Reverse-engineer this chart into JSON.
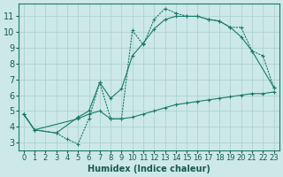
{
  "bg_color": "#cce8e8",
  "grid_color": "#aacece",
  "line_color": "#1a7a6a",
  "xlabel": "Humidex (Indice chaleur)",
  "xlim": [
    -0.5,
    23.5
  ],
  "ylim": [
    2.5,
    11.8
  ],
  "yticks": [
    3,
    4,
    5,
    6,
    7,
    8,
    9,
    10,
    11
  ],
  "xticks": [
    0,
    1,
    2,
    3,
    4,
    5,
    6,
    7,
    8,
    9,
    10,
    11,
    12,
    13,
    14,
    15,
    16,
    17,
    18,
    19,
    20,
    21,
    22,
    23
  ],
  "line1_x": [
    0,
    1,
    3,
    4,
    5,
    6,
    7,
    8,
    9,
    10,
    11,
    12,
    13,
    14,
    15,
    16,
    17,
    18,
    19,
    20,
    21,
    22,
    23
  ],
  "line1_y": [
    4.8,
    3.8,
    3.6,
    3.2,
    2.9,
    4.5,
    6.8,
    4.5,
    4.5,
    10.1,
    9.2,
    10.8,
    11.5,
    11.2,
    11.0,
    11.0,
    10.8,
    10.7,
    10.3,
    10.3,
    8.8,
    8.5,
    6.5
  ],
  "line2_x": [
    0,
    1,
    3,
    5,
    6,
    7,
    8,
    9,
    10,
    11,
    12,
    13,
    14,
    15,
    16,
    17,
    18,
    19,
    20,
    21,
    23
  ],
  "line2_y": [
    4.8,
    3.8,
    3.6,
    4.6,
    5.0,
    6.8,
    5.8,
    6.4,
    8.5,
    9.3,
    10.2,
    10.8,
    11.0,
    11.0,
    11.0,
    10.8,
    10.7,
    10.3,
    9.7,
    8.8,
    6.5
  ],
  "line3_x": [
    0,
    1,
    5,
    6,
    7,
    8,
    9,
    10,
    11,
    12,
    13,
    14,
    15,
    16,
    17,
    18,
    19,
    20,
    21,
    22,
    23
  ],
  "line3_y": [
    4.8,
    3.8,
    4.5,
    4.8,
    5.0,
    4.5,
    4.5,
    4.6,
    4.8,
    5.0,
    5.2,
    5.4,
    5.5,
    5.6,
    5.7,
    5.8,
    5.9,
    6.0,
    6.1,
    6.1,
    6.2
  ],
  "marker_style": "+",
  "fontsize": 7
}
